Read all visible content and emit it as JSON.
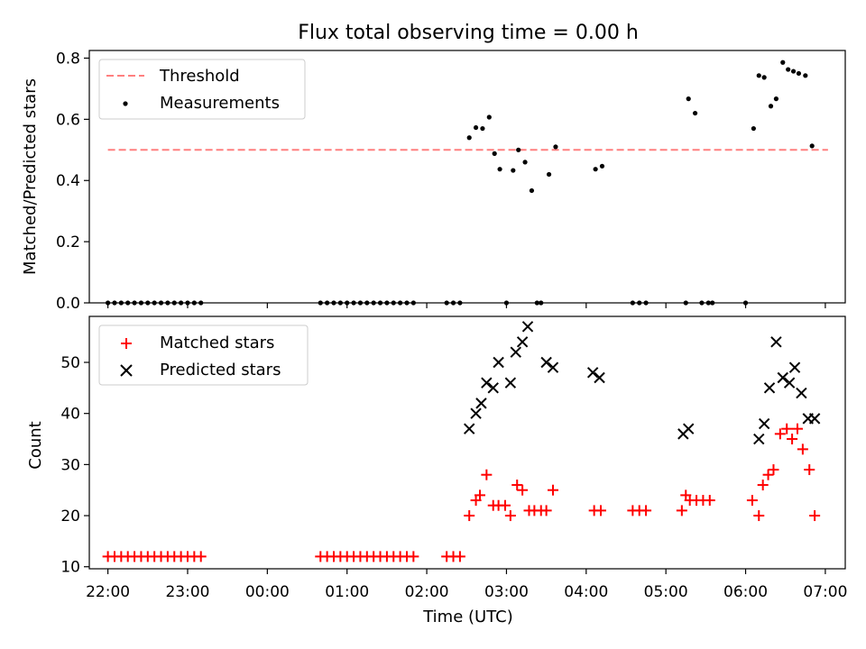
{
  "chart_data": [
    {
      "type": "scatter",
      "title": "Flux total observing time = 0.00 h",
      "xlabel": "",
      "ylabel": "Matched/Predicted stars",
      "xlim": [
        "21:46",
        "07:15"
      ],
      "ylim": [
        0,
        0.825
      ],
      "yticks": [
        0.0,
        0.2,
        0.4,
        0.6,
        0.8
      ],
      "ytick_labels": [
        "0.0",
        "0.2",
        "0.4",
        "0.6",
        "0.8"
      ],
      "legend_position": "top-left",
      "threshold": {
        "name": "Threshold",
        "value": 0.5,
        "x_start": "22:00",
        "x_end": "07:02",
        "color": "#ff7f7f",
        "style": "dashed"
      },
      "series": [
        {
          "name": "Measurements",
          "color": "#000000",
          "marker": "dot",
          "points": [
            [
              "22:00",
              0
            ],
            [
              "22:05",
              0
            ],
            [
              "22:10",
              0
            ],
            [
              "22:15",
              0
            ],
            [
              "22:20",
              0
            ],
            [
              "22:25",
              0
            ],
            [
              "22:30",
              0
            ],
            [
              "22:35",
              0
            ],
            [
              "22:40",
              0
            ],
            [
              "22:45",
              0
            ],
            [
              "22:50",
              0
            ],
            [
              "22:55",
              0
            ],
            [
              "23:00",
              0
            ],
            [
              "23:05",
              0
            ],
            [
              "23:10",
              0
            ],
            [
              "00:40",
              0
            ],
            [
              "00:45",
              0
            ],
            [
              "00:50",
              0
            ],
            [
              "00:55",
              0
            ],
            [
              "01:00",
              0
            ],
            [
              "01:05",
              0
            ],
            [
              "01:10",
              0
            ],
            [
              "01:15",
              0
            ],
            [
              "01:20",
              0
            ],
            [
              "01:25",
              0
            ],
            [
              "01:30",
              0
            ],
            [
              "01:35",
              0
            ],
            [
              "01:40",
              0
            ],
            [
              "01:45",
              0
            ],
            [
              "01:50",
              0
            ],
            [
              "02:15",
              0
            ],
            [
              "02:20",
              0
            ],
            [
              "02:25",
              0
            ],
            [
              "02:32",
              0.54
            ],
            [
              "02:37",
              0.573
            ],
            [
              "02:42",
              0.57
            ],
            [
              "02:47",
              0.607
            ],
            [
              "02:51",
              0.488
            ],
            [
              "02:55",
              0.437
            ],
            [
              "03:00",
              0
            ],
            [
              "03:05",
              0.433
            ],
            [
              "03:09",
              0.5
            ],
            [
              "03:14",
              0.46
            ],
            [
              "03:19",
              0.367
            ],
            [
              "03:23",
              0
            ],
            [
              "03:26",
              0
            ],
            [
              "03:32",
              0.42
            ],
            [
              "03:37",
              0.51
            ],
            [
              "04:07",
              0.437
            ],
            [
              "04:12",
              0.447
            ],
            [
              "04:35",
              0
            ],
            [
              "04:40",
              0
            ],
            [
              "04:45",
              0
            ],
            [
              "05:15",
              0
            ],
            [
              "05:17",
              0.667
            ],
            [
              "05:22",
              0.62
            ],
            [
              "05:27",
              0
            ],
            [
              "05:32",
              0
            ],
            [
              "05:35",
              0
            ],
            [
              "06:00",
              0
            ],
            [
              "06:06",
              0.57
            ],
            [
              "06:10",
              0.743
            ],
            [
              "06:14",
              0.737
            ],
            [
              "06:19",
              0.643
            ],
            [
              "06:23",
              0.667
            ],
            [
              "06:28",
              0.786
            ],
            [
              "06:32",
              0.763
            ],
            [
              "06:36",
              0.757
            ],
            [
              "06:40",
              0.75
            ],
            [
              "06:45",
              0.743
            ],
            [
              "06:50",
              0.513
            ]
          ]
        }
      ]
    },
    {
      "type": "scatter",
      "title": "",
      "xlabel": "Time (UTC)",
      "ylabel": "Count",
      "xlim": [
        "21:46",
        "07:15"
      ],
      "ylim": [
        9.6,
        59
      ],
      "yticks": [
        10,
        20,
        30,
        40,
        50
      ],
      "ytick_labels": [
        "10",
        "20",
        "30",
        "40",
        "50"
      ],
      "xticks": [
        "22:00",
        "23:00",
        "00:00",
        "01:00",
        "02:00",
        "03:00",
        "04:00",
        "05:00",
        "06:00",
        "07:00"
      ],
      "legend_position": "top-left",
      "series": [
        {
          "name": "Matched stars",
          "color": "#ff0000",
          "marker": "plus",
          "points": [
            [
              "22:00",
              12
            ],
            [
              "22:05",
              12
            ],
            [
              "22:10",
              12
            ],
            [
              "22:15",
              12
            ],
            [
              "22:20",
              12
            ],
            [
              "22:25",
              12
            ],
            [
              "22:30",
              12
            ],
            [
              "22:35",
              12
            ],
            [
              "22:40",
              12
            ],
            [
              "22:45",
              12
            ],
            [
              "22:50",
              12
            ],
            [
              "22:55",
              12
            ],
            [
              "23:00",
              12
            ],
            [
              "23:05",
              12
            ],
            [
              "23:10",
              12
            ],
            [
              "00:40",
              12
            ],
            [
              "00:45",
              12
            ],
            [
              "00:50",
              12
            ],
            [
              "00:55",
              12
            ],
            [
              "01:00",
              12
            ],
            [
              "01:05",
              12
            ],
            [
              "01:10",
              12
            ],
            [
              "01:15",
              12
            ],
            [
              "01:20",
              12
            ],
            [
              "01:25",
              12
            ],
            [
              "01:30",
              12
            ],
            [
              "01:35",
              12
            ],
            [
              "01:40",
              12
            ],
            [
              "01:45",
              12
            ],
            [
              "01:50",
              12
            ],
            [
              "02:15",
              12
            ],
            [
              "02:20",
              12
            ],
            [
              "02:25",
              12
            ],
            [
              "02:32",
              20
            ],
            [
              "02:37",
              23
            ],
            [
              "02:40",
              24
            ],
            [
              "02:45",
              28
            ],
            [
              "02:50",
              22
            ],
            [
              "02:54",
              22
            ],
            [
              "02:59",
              22
            ],
            [
              "03:03",
              20
            ],
            [
              "03:08",
              26
            ],
            [
              "03:12",
              25
            ],
            [
              "03:17",
              21
            ],
            [
              "03:21",
              21
            ],
            [
              "03:26",
              21
            ],
            [
              "03:30",
              21
            ],
            [
              "03:35",
              25
            ],
            [
              "04:06",
              21
            ],
            [
              "04:11",
              21
            ],
            [
              "04:35",
              21
            ],
            [
              "04:40",
              21
            ],
            [
              "04:45",
              21
            ],
            [
              "05:12",
              21
            ],
            [
              "05:15",
              24
            ],
            [
              "05:18",
              23
            ],
            [
              "05:23",
              23
            ],
            [
              "05:28",
              23
            ],
            [
              "05:33",
              23
            ],
            [
              "06:05",
              23
            ],
            [
              "06:10",
              20
            ],
            [
              "06:13",
              26
            ],
            [
              "06:17",
              28
            ],
            [
              "06:21",
              29
            ],
            [
              "06:26",
              36
            ],
            [
              "06:31",
              37
            ],
            [
              "06:35",
              35
            ],
            [
              "06:39",
              37
            ],
            [
              "06:43",
              33
            ],
            [
              "06:48",
              29
            ],
            [
              "06:52",
              20
            ]
          ]
        },
        {
          "name": "Predicted stars",
          "color": "#000000",
          "marker": "x",
          "points": [
            [
              "02:32",
              37
            ],
            [
              "02:37",
              40
            ],
            [
              "02:41",
              42
            ],
            [
              "02:45",
              46
            ],
            [
              "02:50",
              45
            ],
            [
              "02:54",
              50
            ],
            [
              "03:03",
              46
            ],
            [
              "03:07",
              52
            ],
            [
              "03:12",
              54
            ],
            [
              "03:16",
              57
            ],
            [
              "03:30",
              50
            ],
            [
              "03:35",
              49
            ],
            [
              "04:05",
              48
            ],
            [
              "04:10",
              47
            ],
            [
              "05:13",
              36
            ],
            [
              "05:17",
              37
            ],
            [
              "06:10",
              35
            ],
            [
              "06:14",
              38
            ],
            [
              "06:18",
              45
            ],
            [
              "06:23",
              54
            ],
            [
              "06:28",
              47
            ],
            [
              "06:33",
              46
            ],
            [
              "06:37",
              49
            ],
            [
              "06:42",
              44
            ],
            [
              "06:47",
              39
            ],
            [
              "06:52",
              39
            ]
          ]
        }
      ]
    }
  ]
}
